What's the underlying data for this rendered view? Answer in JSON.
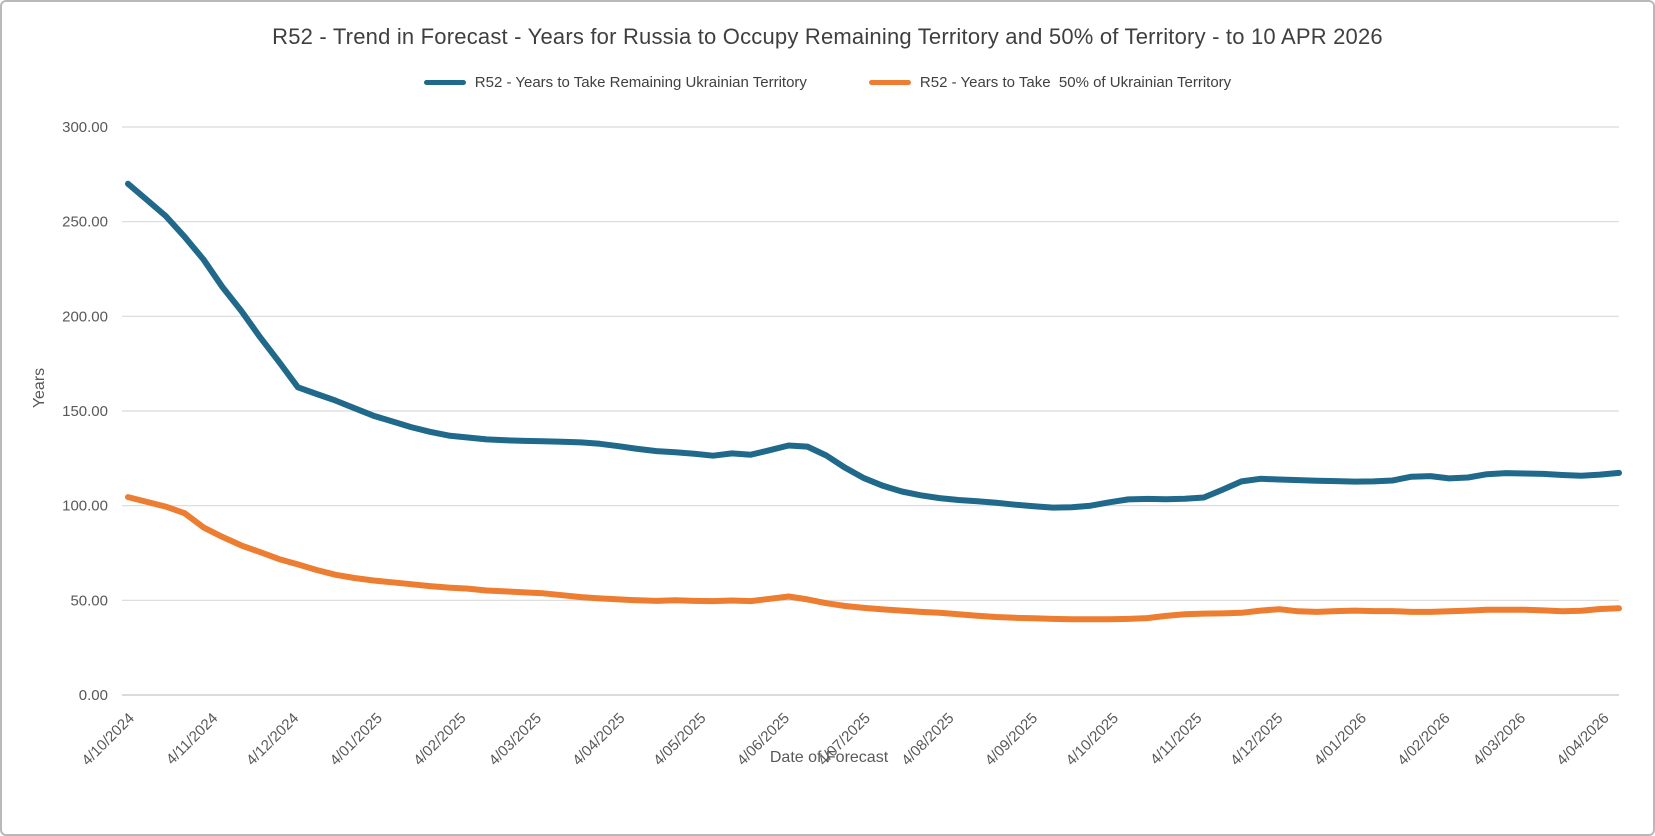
{
  "chart": {
    "title": "R52 - Trend in Forecast - Years for Russia to Occupy Remaining Territory and 50% of Territory - to 10 APR 2026",
    "y_axis": {
      "title": "Years",
      "ticks": [
        "300.00",
        "250.00",
        "200.00",
        "150.00",
        "100.00",
        "50.00",
        "0.00"
      ]
    },
    "x_axis": {
      "title": "Date of Forecast"
    },
    "legend": [
      {
        "label": "R52 - Years to Take Remaining Ukrainian Territory"
      },
      {
        "label": "R52 - Years to Take  50% of Ukrainian Territory"
      }
    ]
  },
  "chart_data": {
    "type": "line",
    "title": "R52 - Trend in Forecast - Years for Russia to Occupy Remaining Territory and 50% of Territory - to 10 APR 2026",
    "xlabel": "Date of Forecast",
    "ylabel": "Years",
    "ylim": [
      0,
      300
    ],
    "y_tick_step": 50,
    "grid": true,
    "legend_position": "top",
    "date_format": "d/mm/yyyy",
    "x_start_date": "4/10/2024",
    "x_step_days": 7,
    "n_points": 80,
    "x_tick_labels": [
      "4/10/2024",
      "4/11/2024",
      "4/12/2024",
      "4/01/2025",
      "4/02/2025",
      "4/03/2025",
      "4/04/2025",
      "4/05/2025",
      "4/06/2025",
      "4/07/2025",
      "4/08/2025",
      "4/09/2025",
      "4/10/2025",
      "4/11/2025",
      "4/12/2025",
      "4/01/2026",
      "4/02/2026",
      "4/03/2026",
      "4/04/2026"
    ],
    "series": [
      {
        "name": "R52 - Years to Take Remaining Ukrainian Territory",
        "color": "#20698A",
        "values": [
          270,
          261.5,
          253,
          242,
          230,
          215.5,
          203,
          189,
          176,
          162.5,
          159,
          155.5,
          151.5,
          147.5,
          144.5,
          141.5,
          139,
          137,
          136,
          135,
          134.5,
          134.2,
          134,
          133.8,
          133.4,
          132.7,
          131.4,
          130,
          128.8,
          128.2,
          127.4,
          126.4,
          127.6,
          126.9,
          129.3,
          131.8,
          131.2,
          126.5,
          120,
          114.5,
          110.5,
          107.5,
          105.5,
          104,
          103,
          102.3,
          101.5,
          100.5,
          99.7,
          99,
          99.2,
          100,
          101.8,
          103.3,
          103.6,
          103.4,
          103.7,
          104.3,
          108.5,
          112.8,
          114.2,
          113.8,
          113.5,
          113.2,
          113,
          112.7,
          112.8,
          113.3,
          115.3,
          115.6,
          114.4,
          114.9,
          116.6,
          117.2,
          117,
          116.8,
          116.2,
          115.8,
          116.4,
          117.3
        ]
      },
      {
        "name": "R52 - Years to Take  50% of Ukrainian Territory",
        "color": "#ED7D31",
        "values": [
          104.5,
          102,
          99.5,
          96,
          88.5,
          83.5,
          79,
          75.5,
          71.8,
          69,
          66,
          63.5,
          61.8,
          60.5,
          59.5,
          58.5,
          57.5,
          56.7,
          56.2,
          55.2,
          54.7,
          54.2,
          53.7,
          52.7,
          51.7,
          51,
          50.5,
          50,
          49.7,
          50,
          49.7,
          49.6,
          49.9,
          49.6,
          50.8,
          52,
          50.5,
          48.5,
          47,
          46,
          45.2,
          44.6,
          43.9,
          43.4,
          42.7,
          41.9,
          41.2,
          40.8,
          40.5,
          40.2,
          40,
          40,
          40,
          40.2,
          40.6,
          41.8,
          42.7,
          43,
          43.1,
          43.4,
          44.6,
          45.3,
          44.2,
          43.9,
          44.3,
          44.6,
          44.3,
          44.3,
          43.9,
          43.9,
          44.2,
          44.6,
          45,
          45,
          45,
          44.7,
          44.2,
          44.5,
          45.4,
          45.8
        ]
      }
    ]
  }
}
